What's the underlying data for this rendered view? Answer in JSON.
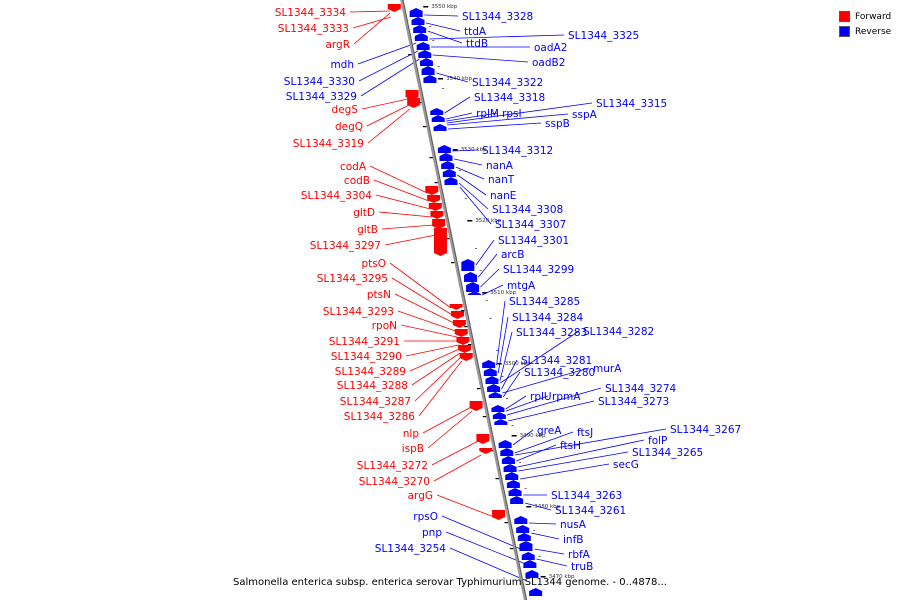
{
  "title": "Salmonella enterica subsp. enterica serovar Typhimurium SL1344 genome. - 0..4878...",
  "legend": {
    "forward_label": "Forward",
    "reverse_label": "Reverse",
    "forward_color": "#ff0000",
    "reverse_color": "#0000ff"
  },
  "colors": {
    "forward": "#ff0000",
    "reverse": "#0000ff",
    "axis": "#888888"
  },
  "ticks": [
    "3550 kbp",
    "3540 kbp",
    "3530 kbp",
    "3520 kbp",
    "3510 kbp",
    "3500 kbp",
    "3490 kbp",
    "3480 kbp",
    "3470 kbp"
  ],
  "forward_genes": [
    "SL1344_3334",
    "SL1344_3333",
    "argR",
    "degS",
    "degQ",
    "SL1344_3319",
    "codA",
    "codB",
    "SL1344_3304",
    "gltD",
    "gltB",
    "SL1344_3297",
    "ptsO",
    "SL1344_3295",
    "ptsN",
    "SL1344_3293",
    "rpoN",
    "SL1344_3291",
    "SL1344_3290",
    "SL1344_3289",
    "SL1344_3288",
    "SL1344_3287",
    "SL1344_3286",
    "nlp",
    "ispB",
    "SL1344_3272",
    "SL1344_3270",
    "argG"
  ],
  "reverse_left_genes": [
    "mdh",
    "SL1344_3330",
    "SL1344_3329",
    "rpsO",
    "pnp",
    "SL1344_3254"
  ],
  "reverse_genes": [
    "SL1344_3328",
    "ttdA",
    "ttdB",
    "SL1344_3325",
    "oadA2",
    "oadB2",
    "SL1344_3322",
    "SL1344_3318",
    "rplM",
    "rpsI",
    "SL1344_3315",
    "sspA",
    "sspB",
    "SL1344_3312",
    "nanA",
    "nanT",
    "nanE",
    "SL1344_3308",
    "SL1344_3307",
    "SL1344_3301",
    "arcB",
    "SL1344_3299",
    "mtgA",
    "SL1344_3285",
    "SL1344_3284",
    "SL1344_3283",
    "SL1344_3282",
    "SL1344_3281",
    "murA",
    "SL1344_3280",
    "rplU",
    "rpmA",
    "SL1344_3274",
    "SL1344_3273",
    "greA",
    "ftsJ",
    "SL1344_3267",
    "ftsH",
    "folP",
    "SL1344_3265",
    "secG",
    "SL1344_3263",
    "SL1344_3261",
    "nusA",
    "infB",
    "rbfA",
    "truB"
  ]
}
